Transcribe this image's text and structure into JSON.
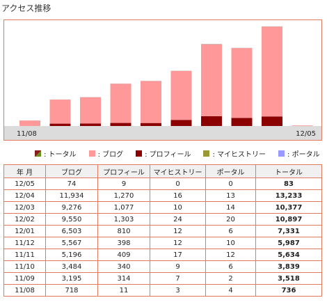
{
  "page_title": "アクセス推移",
  "chart_data": {
    "type": "bar",
    "categories": [
      "11/08",
      "11/09",
      "11/10",
      "11/11",
      "11/12",
      "12/01",
      "12/02",
      "12/03",
      "12/04",
      "12/05"
    ],
    "x_start_label": "11/08",
    "x_end_label": "12/05",
    "series": [
      {
        "name": "プロフィール",
        "values": [
          11,
          314,
          340,
          409,
          398,
          810,
          1303,
          1077,
          1270,
          9
        ],
        "color": "#8b0000"
      },
      {
        "name": "ブログ",
        "values": [
          718,
          3195,
          3484,
          5196,
          5567,
          6503,
          9550,
          9276,
          11934,
          74
        ],
        "color": "#ff9999"
      },
      {
        "name": "マイヒストリー",
        "values": [
          3,
          7,
          9,
          17,
          12,
          12,
          24,
          10,
          16,
          0
        ],
        "color": "#999933"
      },
      {
        "name": "ポータル",
        "values": [
          4,
          2,
          6,
          12,
          10,
          6,
          20,
          14,
          13,
          0
        ],
        "color": "#9999ff"
      }
    ],
    "totals": [
      736,
      3518,
      3839,
      5634,
      5987,
      7331,
      10897,
      10377,
      13233,
      83
    ],
    "stacked": true
  },
  "legend": {
    "total": ": トータル",
    "blog": ": ブログ",
    "profile": ": プロフィール",
    "history": ": マイヒストリー",
    "portal": ": ポータル"
  },
  "table": {
    "headers": [
      "年 月",
      "ブログ",
      "プロフィール",
      "マイヒストリー",
      "ポータル",
      "トータル"
    ],
    "rows": [
      [
        "12/05",
        "74",
        "9",
        "0",
        "0",
        "83"
      ],
      [
        "12/04",
        "11,934",
        "1,270",
        "16",
        "13",
        "13,233"
      ],
      [
        "12/03",
        "9,276",
        "1,077",
        "10",
        "14",
        "10,377"
      ],
      [
        "12/02",
        "9,550",
        "1,303",
        "24",
        "20",
        "10,897"
      ],
      [
        "12/01",
        "6,503",
        "810",
        "12",
        "6",
        "7,331"
      ],
      [
        "11/12",
        "5,567",
        "398",
        "12",
        "10",
        "5,987"
      ],
      [
        "11/11",
        "5,196",
        "409",
        "17",
        "12",
        "5,634"
      ],
      [
        "11/10",
        "3,484",
        "340",
        "9",
        "6",
        "3,839"
      ],
      [
        "11/09",
        "3,195",
        "314",
        "7",
        "2",
        "3,518"
      ],
      [
        "11/08",
        "718",
        "11",
        "3",
        "4",
        "736"
      ]
    ]
  }
}
